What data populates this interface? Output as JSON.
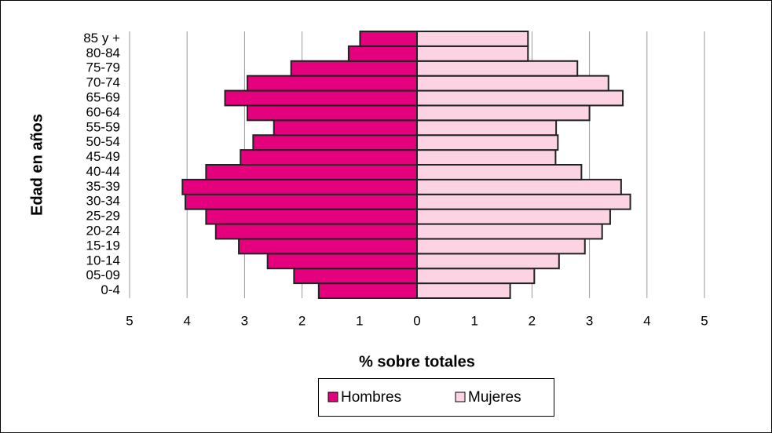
{
  "chart_data": {
    "type": "pyramid",
    "xlabel": "% sobre totales",
    "ylabel": "Edad en años",
    "categories": [
      "0-4",
      "05-09",
      "10-14",
      "15-19",
      "20-24",
      "25-29",
      "30-34",
      "35-39",
      "40-44",
      "45-49",
      "50-54",
      "55-59",
      "60-64",
      "65-69",
      "70-74",
      "75-79",
      "80-84",
      "85 y +"
    ],
    "series": [
      {
        "name": "Hombres",
        "color": "#e5007d",
        "side": "left",
        "values": [
          1.71,
          2.14,
          2.6,
          3.1,
          3.5,
          3.67,
          4.03,
          4.08,
          3.67,
          3.07,
          2.85,
          2.49,
          2.95,
          3.34,
          2.95,
          2.19,
          1.19,
          0.99
        ]
      },
      {
        "name": "Mujeres",
        "color": "#fbd3e3",
        "side": "right",
        "values": [
          1.62,
          2.04,
          2.47,
          2.92,
          3.22,
          3.36,
          3.71,
          3.55,
          2.86,
          2.41,
          2.45,
          2.42,
          3.0,
          3.58,
          3.33,
          2.79,
          1.93,
          1.93
        ]
      }
    ],
    "xlim": [
      -5,
      5
    ],
    "xticks": [
      {
        "value": -5,
        "label": "5"
      },
      {
        "value": -4,
        "label": "4"
      },
      {
        "value": -3,
        "label": "3"
      },
      {
        "value": -2,
        "label": "2"
      },
      {
        "value": -1,
        "label": "1"
      },
      0,
      1,
      2,
      3,
      4,
      5
    ],
    "grid": true,
    "legend": "bottom"
  }
}
